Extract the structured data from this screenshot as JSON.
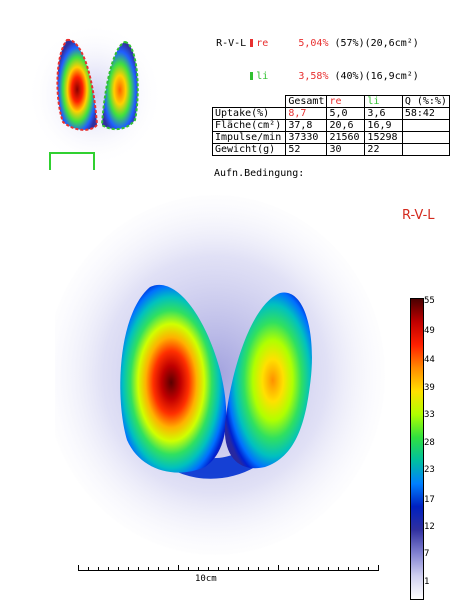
{
  "legend": {
    "view_label": "R-V-L",
    "rows": [
      {
        "side": "re",
        "percent": "5,04%",
        "detail": "(57%)(20,6cm²)",
        "color": "#e83030"
      },
      {
        "side": "li",
        "percent": "3,58%",
        "detail": "(40%)(16,9cm²)",
        "color": "#30c030"
      }
    ]
  },
  "results_table": {
    "headers": [
      "",
      "Gesamt",
      "re",
      "li",
      "Q (%:%)"
    ],
    "rows": [
      [
        "Uptake(%)",
        "8,7",
        "5,0",
        "3,6",
        "58:42"
      ],
      [
        "Fläche(cm²)",
        "37,8",
        "20,6",
        "16,9",
        ""
      ],
      [
        "Impulse/min",
        "37330",
        "21560",
        "15298",
        ""
      ],
      [
        "Gewicht(g)",
        "52",
        "30",
        "22",
        ""
      ]
    ]
  },
  "condition_label": "Aufn.Bedingung:",
  "main_view_label": "R-V-L",
  "color_scale": {
    "ticks": [
      "55",
      "49",
      "44",
      "39",
      "33",
      "28",
      "23",
      "17",
      "12",
      "7",
      "1"
    ],
    "colors": [
      "#4a0000",
      "#c00000",
      "#ff2000",
      "#ff8c00",
      "#ffe000",
      "#b0ff00",
      "#30e040",
      "#00c0a0",
      "#0080ff",
      "#0020c0",
      "#3030a0",
      "#8080d0",
      "#d0d0f0",
      "#ffffff"
    ]
  },
  "scale_label": "10cm",
  "colors": {
    "red": "#e83030",
    "green": "#30c030",
    "text_red": "#d42a1e"
  }
}
